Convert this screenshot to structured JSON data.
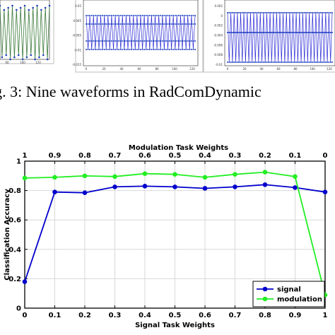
{
  "figure_caption": "ig. 3: Nine waveforms in RadComDynamic",
  "waveform_panels": [
    {
      "x_ticks": [
        "60",
        "100",
        "120"
      ],
      "y_ticks": [],
      "line_color": "#3a7a3a",
      "marker_color": "#1f3fbf"
    },
    {
      "x_ticks": [
        "0",
        "20",
        "40",
        "60",
        "80",
        "100",
        "120"
      ],
      "y_ticks": [
        "0.05",
        "0.005",
        "-0.005",
        "-0.01",
        "-0.015"
      ],
      "line_color": "#2b2bd6",
      "marker_color": "#1f3fbf"
    },
    {
      "x_ticks": [
        "0",
        "20",
        "40",
        "60",
        "80",
        "100",
        "120"
      ],
      "y_ticks": [
        "0.002",
        "0",
        "-0.002",
        "-0.004",
        "-0.006",
        "-0.008",
        "-0.01"
      ],
      "line_color": "#2b2bd6",
      "marker_color": "#1f3fbf"
    }
  ],
  "chart_data": {
    "type": "line",
    "title": "",
    "xlabel": "Signal Task Weights",
    "ylabel": "Classification Accuracy",
    "top_xlabel": "Modulation Task Weights",
    "x": [
      0,
      0.1,
      0.2,
      0.3,
      0.4,
      0.5,
      0.6,
      0.7,
      0.8,
      0.9,
      1
    ],
    "x_tick_labels": [
      "0",
      "0.1",
      "0.2",
      "0.3",
      "0.4",
      "0.5",
      "0.6",
      "0.7",
      "0.8",
      "0.9",
      "1"
    ],
    "top_tick_labels": [
      "1",
      "0.9",
      "0.8",
      "0.7",
      "0.6",
      "0.5",
      "0.4",
      "0.3",
      "0.2",
      "0.1",
      "0"
    ],
    "y_tick_labels": [
      "0",
      "0.2",
      "0.4",
      "0.6",
      "0.8",
      "1"
    ],
    "xlim": [
      0,
      1
    ],
    "ylim": [
      0,
      1
    ],
    "grid": true,
    "legend_position": "bottom-right",
    "series": [
      {
        "name": "signal",
        "color": "#0000cc",
        "values": [
          0.18,
          0.79,
          0.785,
          0.825,
          0.83,
          0.825,
          0.815,
          0.825,
          0.84,
          0.82,
          0.79
        ]
      },
      {
        "name": "modulation",
        "color": "#22ee22",
        "values": [
          0.885,
          0.89,
          0.9,
          0.895,
          0.915,
          0.91,
          0.89,
          0.91,
          0.925,
          0.895,
          0.09
        ]
      }
    ]
  }
}
